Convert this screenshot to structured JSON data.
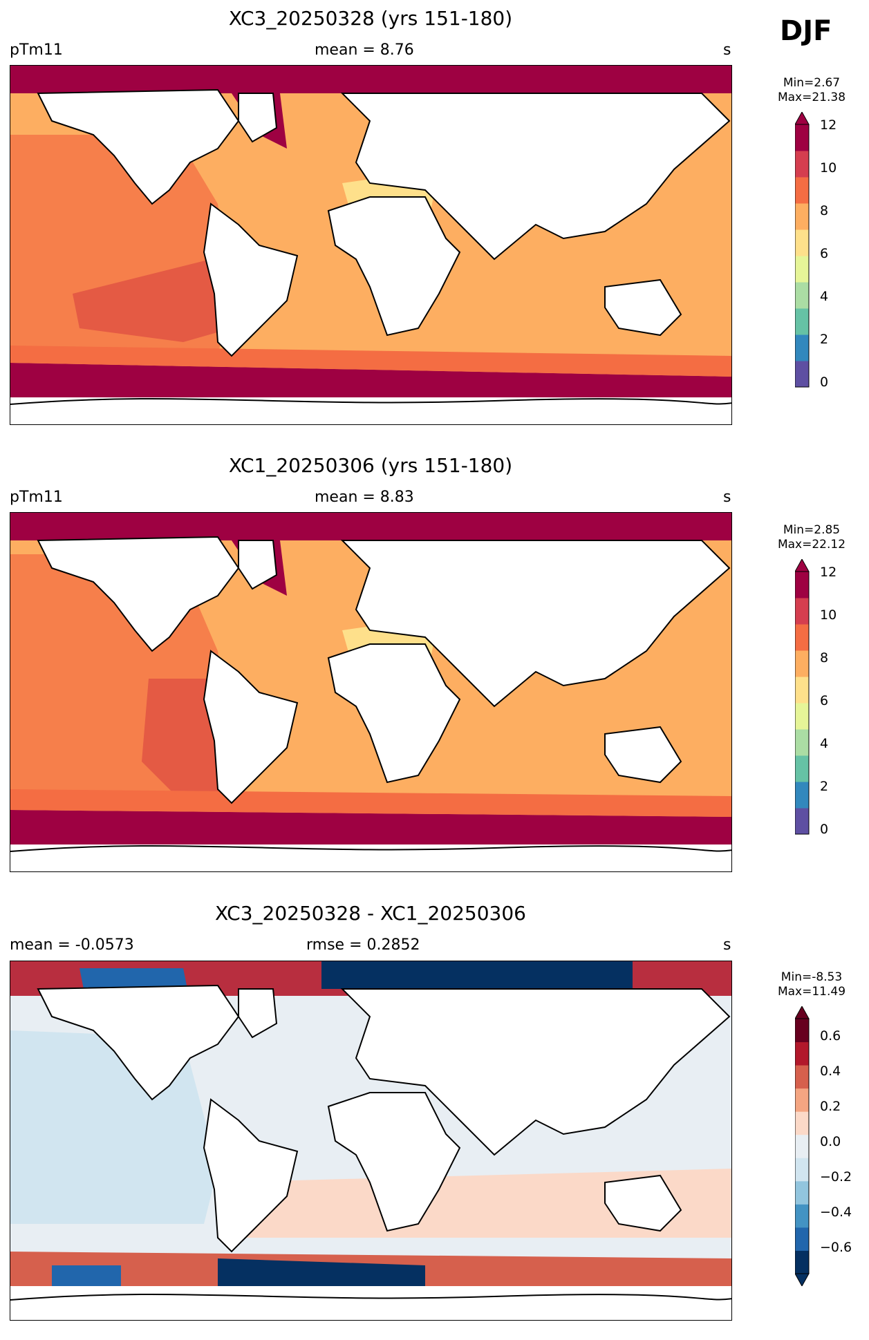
{
  "season": "DJF",
  "panels": [
    {
      "title": "XC3_20250328 (yrs 151-180)",
      "left": "pTm11",
      "center": "mean = 8.76",
      "right": "s",
      "stats": "Min=2.67\nMax=21.38",
      "colorbar": {
        "ticks": [
          "0",
          "2",
          "4",
          "6",
          "8",
          "10",
          "12"
        ],
        "colors": [
          "#5e4fa2",
          "#3288bd",
          "#66c2a5",
          "#abdda4",
          "#e6f598",
          "#fee08b",
          "#fdae61",
          "#f46d43",
          "#d53e4f",
          "#9e0142"
        ]
      }
    },
    {
      "title": "XC1_20250306 (yrs 151-180)",
      "left": "pTm11",
      "center": "mean = 8.83",
      "right": "s",
      "stats": "Min=2.85\nMax=22.12",
      "colorbar": {
        "ticks": [
          "0",
          "2",
          "4",
          "6",
          "8",
          "10",
          "12"
        ],
        "colors": [
          "#5e4fa2",
          "#3288bd",
          "#66c2a5",
          "#abdda4",
          "#e6f598",
          "#fee08b",
          "#fdae61",
          "#f46d43",
          "#d53e4f",
          "#9e0142"
        ]
      }
    },
    {
      "title": "XC3_20250328 - XC1_20250306",
      "left": "mean = -0.0573",
      "center": "rmse = 0.2852",
      "right": "s",
      "stats": "Min=-8.53\nMax=11.49",
      "colorbar": {
        "ticks": [
          "0.6",
          "0.4",
          "0.2",
          "0.0",
          "−0.2",
          "−0.4",
          "−0.6"
        ],
        "colors": [
          "#053061",
          "#2166ac",
          "#4393c3",
          "#92c5de",
          "#d1e5f0",
          "#e8eef3",
          "#fbd9c8",
          "#f4a582",
          "#d6604d",
          "#b2182b",
          "#67001f"
        ]
      }
    }
  ]
}
